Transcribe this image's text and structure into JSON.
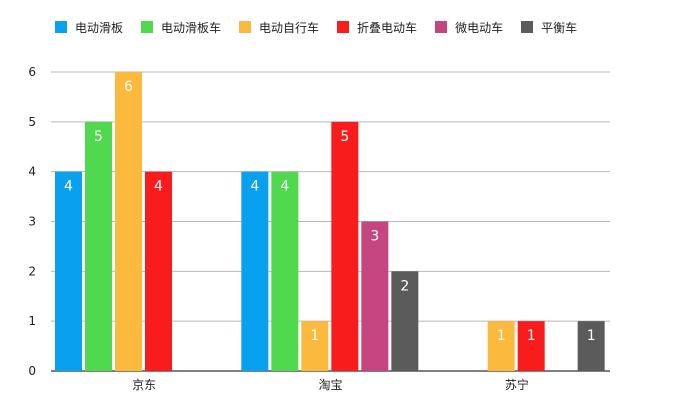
{
  "chart_data": {
    "type": "bar",
    "title": "",
    "xlabel": "",
    "ylabel": "",
    "categories": [
      "京东",
      "淘宝",
      "苏宁"
    ],
    "ylim": [
      0,
      6
    ],
    "yticks": [
      "0",
      "1",
      "2",
      "3",
      "4",
      "5",
      "6"
    ],
    "grid": true,
    "legend_position": "top-left",
    "series": [
      {
        "name": "电动滑板",
        "color": "#0aa0f0",
        "values": [
          4,
          4,
          null
        ]
      },
      {
        "name": "电动滑板车",
        "color": "#50d84f",
        "values": [
          5,
          4,
          null
        ]
      },
      {
        "name": "电动自行车",
        "color": "#fbb93d",
        "values": [
          6,
          1,
          1
        ]
      },
      {
        "name": "折叠电动车",
        "color": "#f91c1c",
        "values": [
          4,
          5,
          1
        ]
      },
      {
        "name": "微电动车",
        "color": "#c54580",
        "values": [
          null,
          3,
          null
        ]
      },
      {
        "name": "平衡车",
        "color": "#5b5b5b",
        "values": [
          null,
          2,
          1
        ]
      }
    ]
  }
}
